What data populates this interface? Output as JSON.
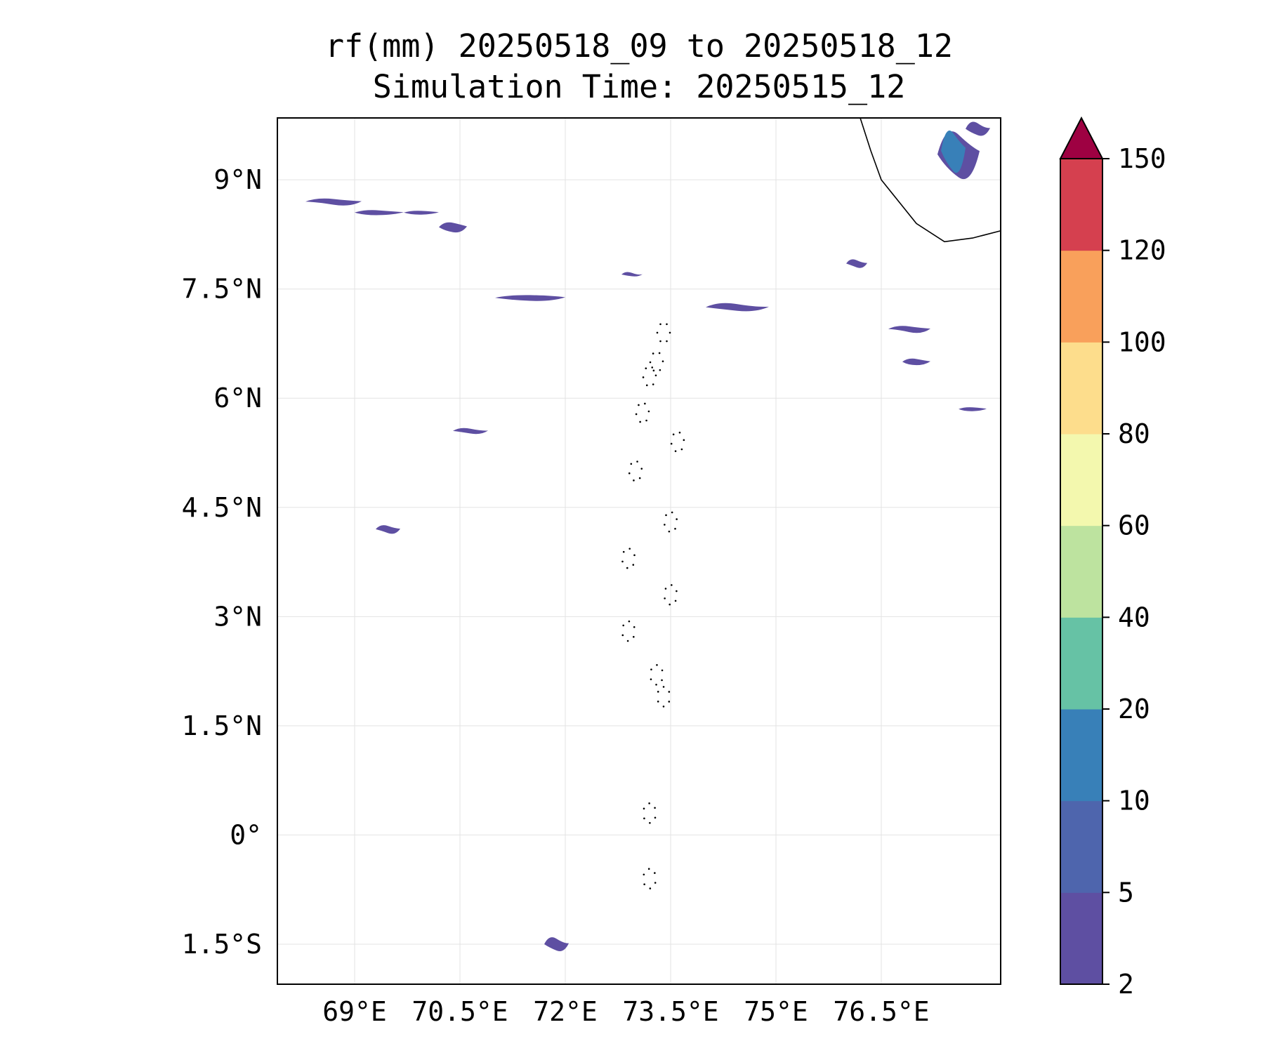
{
  "title": {
    "line1": "rf(mm) 20250518_09 to 20250518_12",
    "line2": "Simulation Time: 20250515_12"
  },
  "map": {
    "lon_range": [
      67.9,
      78.2
    ],
    "lat_range": [
      -2.05,
      9.85
    ],
    "x_ticks": [
      {
        "value": 69,
        "label": "69°E"
      },
      {
        "value": 70.5,
        "label": "70.5°E"
      },
      {
        "value": 72,
        "label": "72°E"
      },
      {
        "value": 73.5,
        "label": "73.5°E"
      },
      {
        "value": 75,
        "label": "75°E"
      },
      {
        "value": 76.5,
        "label": "76.5°E"
      }
    ],
    "y_ticks": [
      {
        "value": 9,
        "label": "9°N"
      },
      {
        "value": 7.5,
        "label": "7.5°N"
      },
      {
        "value": 6,
        "label": "6°N"
      },
      {
        "value": 4.5,
        "label": "4.5°N"
      },
      {
        "value": 3,
        "label": "3°N"
      },
      {
        "value": 1.5,
        "label": "1.5°N"
      },
      {
        "value": 0,
        "label": "0°"
      },
      {
        "value": -1.5,
        "label": "1.5°S"
      }
    ],
    "grid": true,
    "colors": {
      "light": "#5e4fa2",
      "moderate": "#3880b8"
    },
    "rain_cells": [
      {
        "lon": 68.3,
        "lat": 8.7,
        "w": 0.8,
        "h": 0.12,
        "level": 0
      },
      {
        "lon": 69.0,
        "lat": 8.55,
        "w": 0.7,
        "h": 0.1,
        "level": 0
      },
      {
        "lon": 69.7,
        "lat": 8.55,
        "w": 0.5,
        "h": 0.08,
        "level": 0
      },
      {
        "lon": 70.2,
        "lat": 8.35,
        "w": 0.4,
        "h": 0.2,
        "level": 0
      },
      {
        "lon": 71.0,
        "lat": 7.38,
        "w": 1.0,
        "h": 0.12,
        "level": 0
      },
      {
        "lon": 72.8,
        "lat": 7.7,
        "w": 0.3,
        "h": 0.07,
        "level": 0
      },
      {
        "lon": 74.0,
        "lat": 7.25,
        "w": 0.9,
        "h": 0.14,
        "level": 0
      },
      {
        "lon": 70.4,
        "lat": 5.55,
        "w": 0.5,
        "h": 0.1,
        "level": 0
      },
      {
        "lon": 69.3,
        "lat": 4.2,
        "w": 0.35,
        "h": 0.15,
        "level": 0
      },
      {
        "lon": 76.6,
        "lat": 6.95,
        "w": 0.6,
        "h": 0.12,
        "level": 0
      },
      {
        "lon": 76.8,
        "lat": 6.5,
        "w": 0.4,
        "h": 0.13,
        "level": 0
      },
      {
        "lon": 77.6,
        "lat": 5.85,
        "w": 0.4,
        "h": 0.08,
        "level": 0
      },
      {
        "lon": 77.3,
        "lat": 9.35,
        "w": 0.6,
        "h": 0.9,
        "level": 0
      },
      {
        "lon": 77.35,
        "lat": 9.4,
        "w": 0.35,
        "h": 0.8,
        "level": 1
      },
      {
        "lon": 77.7,
        "lat": 9.7,
        "w": 0.35,
        "h": 0.25,
        "level": 0
      },
      {
        "lon": 71.7,
        "lat": -1.5,
        "w": 0.35,
        "h": 0.25,
        "level": 0
      },
      {
        "lon": 76.0,
        "lat": 7.85,
        "w": 0.3,
        "h": 0.15,
        "level": 0
      }
    ],
    "islands": [
      {
        "lon": 73.4,
        "lat": 6.9
      },
      {
        "lon": 73.3,
        "lat": 6.5
      },
      {
        "lon": 73.2,
        "lat": 6.3
      },
      {
        "lon": 73.1,
        "lat": 5.8
      },
      {
        "lon": 73.6,
        "lat": 5.4
      },
      {
        "lon": 73.0,
        "lat": 5.0
      },
      {
        "lon": 73.5,
        "lat": 4.3
      },
      {
        "lon": 72.9,
        "lat": 3.8
      },
      {
        "lon": 73.5,
        "lat": 3.3
      },
      {
        "lon": 72.9,
        "lat": 2.8
      },
      {
        "lon": 73.3,
        "lat": 2.2
      },
      {
        "lon": 73.4,
        "lat": 1.9
      },
      {
        "lon": 73.2,
        "lat": 0.3
      },
      {
        "lon": 73.2,
        "lat": -0.6
      }
    ],
    "coastline": [
      [
        76.2,
        9.85
      ],
      [
        76.35,
        9.4
      ],
      [
        76.5,
        9.0
      ],
      [
        76.75,
        8.7
      ],
      [
        77.0,
        8.4
      ],
      [
        77.4,
        8.15
      ],
      [
        77.8,
        8.2
      ],
      [
        78.2,
        8.3
      ]
    ]
  },
  "colorbar": {
    "levels": [
      2,
      5,
      10,
      20,
      40,
      60,
      80,
      100,
      120,
      150
    ],
    "colors": [
      "#5e4fa2",
      "#4e65ad",
      "#3880b8",
      "#66c2a5",
      "#bde39f",
      "#f3f8ae",
      "#fddd8c",
      "#f9a05b",
      "#d5404f"
    ],
    "extend_color": "#9e0142",
    "labels": [
      "2",
      "5",
      "10",
      "20",
      "40",
      "60",
      "80",
      "100",
      "120",
      "150"
    ]
  }
}
